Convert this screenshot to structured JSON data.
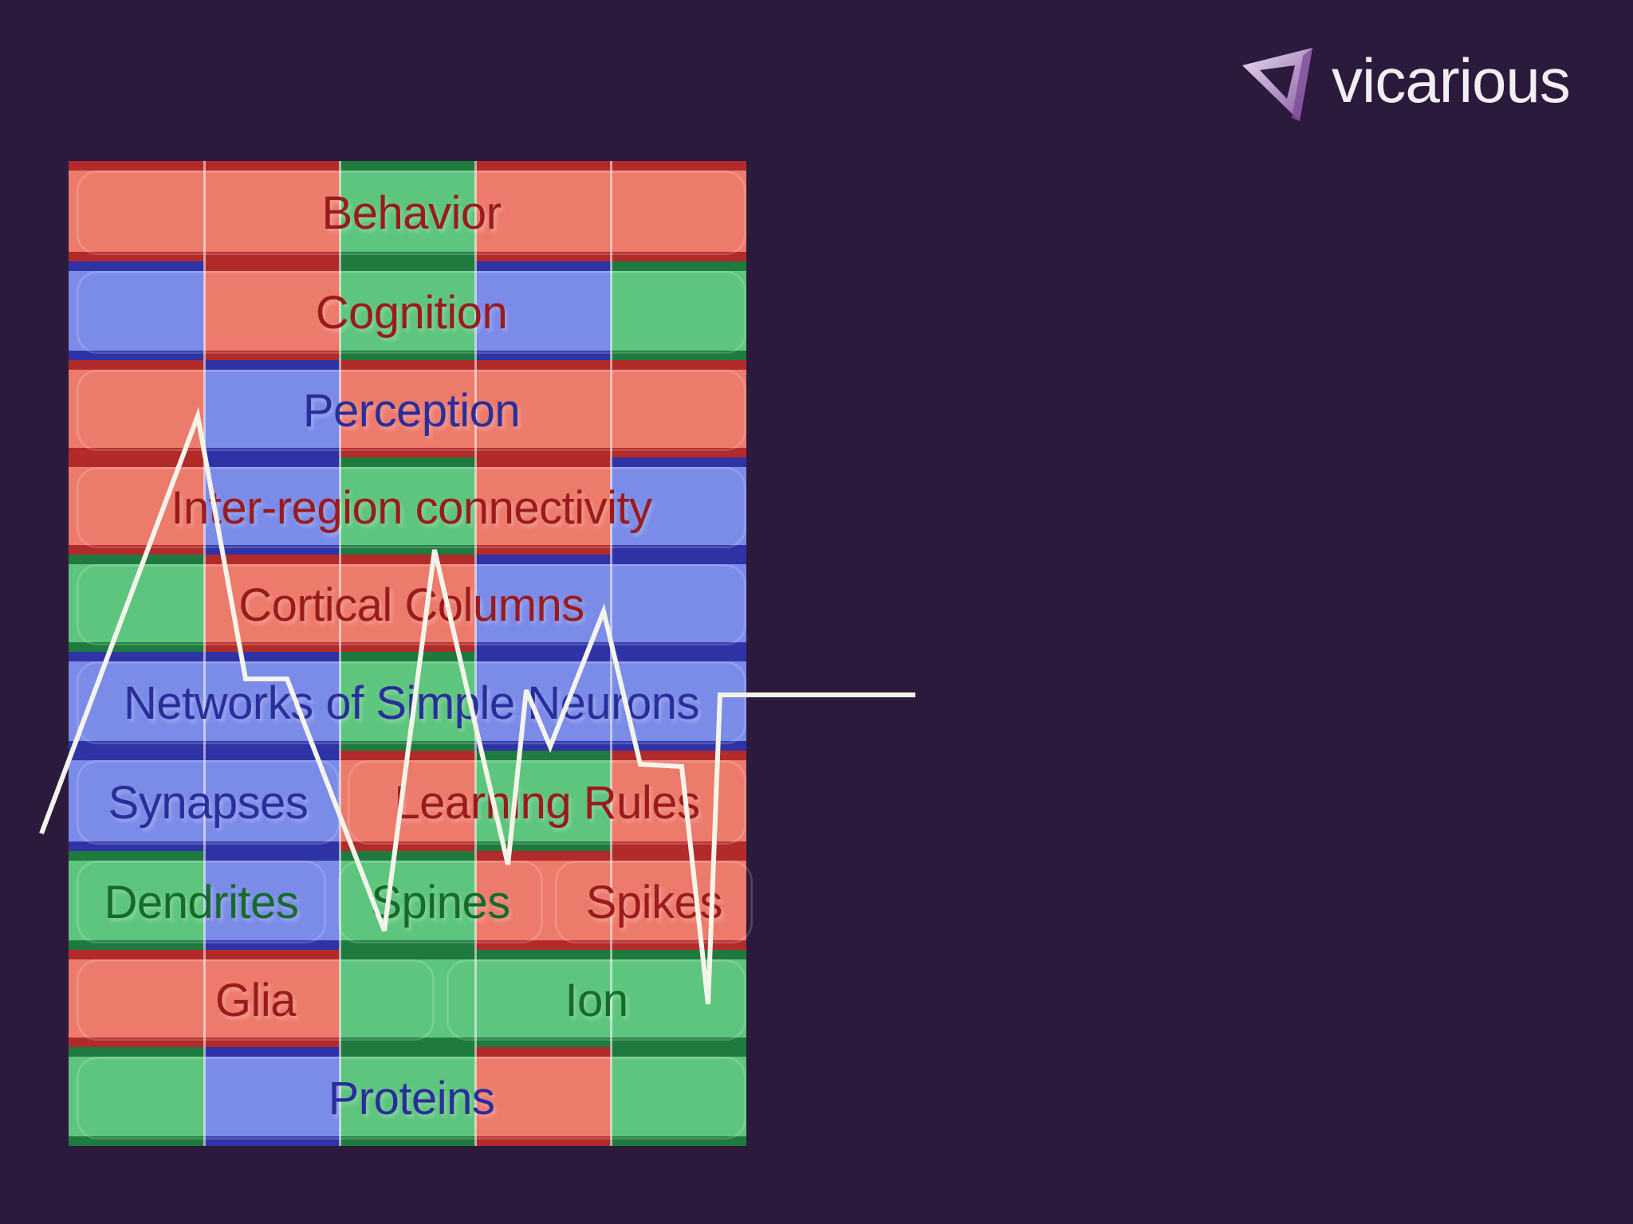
{
  "logo": {
    "text": "vicarious",
    "icon": "vicarious-triangle-logo-icon"
  },
  "colors": {
    "background": "#2c1a3c",
    "red_dark": "#b22a2a",
    "red_light": "#ed7b6c",
    "red_text": "#9a1b1b",
    "blue_dark": "#2f33a6",
    "blue_light": "#7b8be8",
    "blue_text": "#2a2e9a",
    "green_dark": "#1e7a3e",
    "green_light": "#5ec57e",
    "green_text": "#166a2a",
    "trace": "#f4f4ea"
  },
  "grid": {
    "columns": 5,
    "rows": [
      {
        "bg": [
          "R",
          "R",
          "G",
          "R",
          "R"
        ],
        "pills": [
          {
            "label": "Behavior",
            "color": "R",
            "from": 0,
            "to": 5
          }
        ]
      },
      {
        "bg": [
          "B",
          "R",
          "G",
          "B",
          "G"
        ],
        "pills": [
          {
            "label": "Cognition",
            "color": "R",
            "from": 0,
            "to": 5
          }
        ]
      },
      {
        "bg": [
          "R",
          "B",
          "R",
          "R",
          "R"
        ],
        "pills": [
          {
            "label": "Perception",
            "color": "B",
            "from": 0,
            "to": 5
          }
        ]
      },
      {
        "bg": [
          "R",
          "B",
          "G",
          "R",
          "B"
        ],
        "pills": [
          {
            "label": "Inter-region connectivity",
            "color": "R",
            "from": 0,
            "to": 5
          }
        ]
      },
      {
        "bg": [
          "G",
          "R",
          "R",
          "B",
          "B"
        ],
        "pills": [
          {
            "label": "Cortical Columns",
            "color": "R",
            "from": 0,
            "to": 5
          }
        ]
      },
      {
        "bg": [
          "B",
          "B",
          "G",
          "B",
          "B"
        ],
        "pills": [
          {
            "label": "Networks of Simple Neurons",
            "color": "B",
            "from": 0,
            "to": 5
          }
        ]
      },
      {
        "bg": [
          "B",
          "B",
          "R",
          "G",
          "R"
        ],
        "pills": [
          {
            "label": "Synapses",
            "color": "B",
            "from": 0,
            "to": 2
          },
          {
            "label": "Learning Rules",
            "color": "R",
            "from": 2,
            "to": 5
          }
        ]
      },
      {
        "bg": [
          "G",
          "B",
          "G",
          "R",
          "R"
        ],
        "pills": [
          {
            "label": "Dendrites",
            "color": "G",
            "from": 0,
            "to": 1.9
          },
          {
            "label": "Spines",
            "color": "G",
            "from": 1.93,
            "to": 3.5
          },
          {
            "label": "Spikes",
            "color": "R",
            "from": 3.53,
            "to": 5.05
          }
        ]
      },
      {
        "bg": [
          "R",
          "R",
          "G",
          "G",
          "G"
        ],
        "pills": [
          {
            "label": "Glia",
            "color": "R",
            "from": 0,
            "to": 2.7
          },
          {
            "label": "Ion",
            "color": "G",
            "from": 2.73,
            "to": 5
          }
        ]
      },
      {
        "bg": [
          "G",
          "B",
          "G",
          "R",
          "G"
        ],
        "pills": [
          {
            "label": "Proteins",
            "color": "B",
            "from": 0,
            "to": 5
          }
        ]
      }
    ]
  }
}
